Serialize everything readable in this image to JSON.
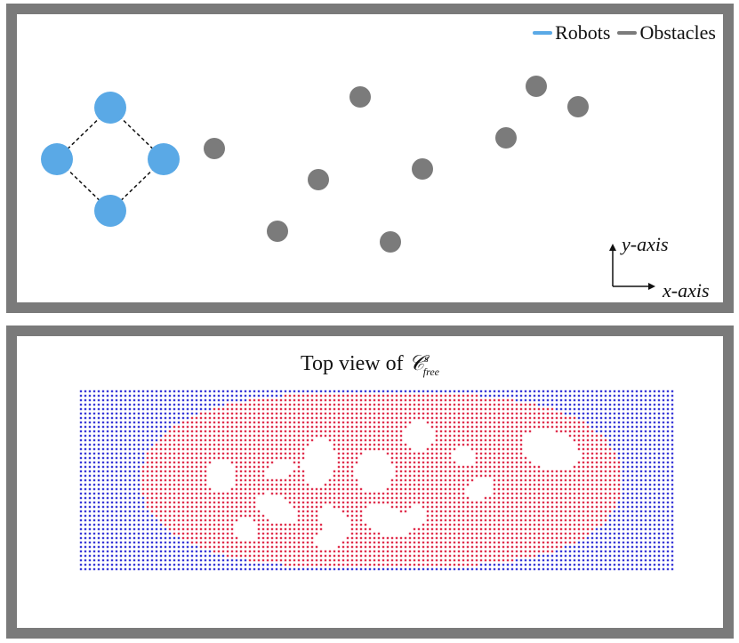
{
  "legend": {
    "items": [
      {
        "label": "Robots",
        "color": "#5aa9e6"
      },
      {
        "label": "Obstacles",
        "color": "#7b7b7b"
      }
    ]
  },
  "axes": {
    "y_label": "y-axis",
    "x_label": "x-axis"
  },
  "bottom": {
    "title_prefix": "Top view of",
    "title_symbol": "𝒞",
    "title_sup": "s",
    "title_sub": "free"
  },
  "colors": {
    "panel_border": "#7a7a7a",
    "robot": "#5aa9e6",
    "obstacle": "#7b7b7b",
    "free_config_dot_a": "#e0304e",
    "free_config_dot_b": "#3a3ad8"
  }
}
